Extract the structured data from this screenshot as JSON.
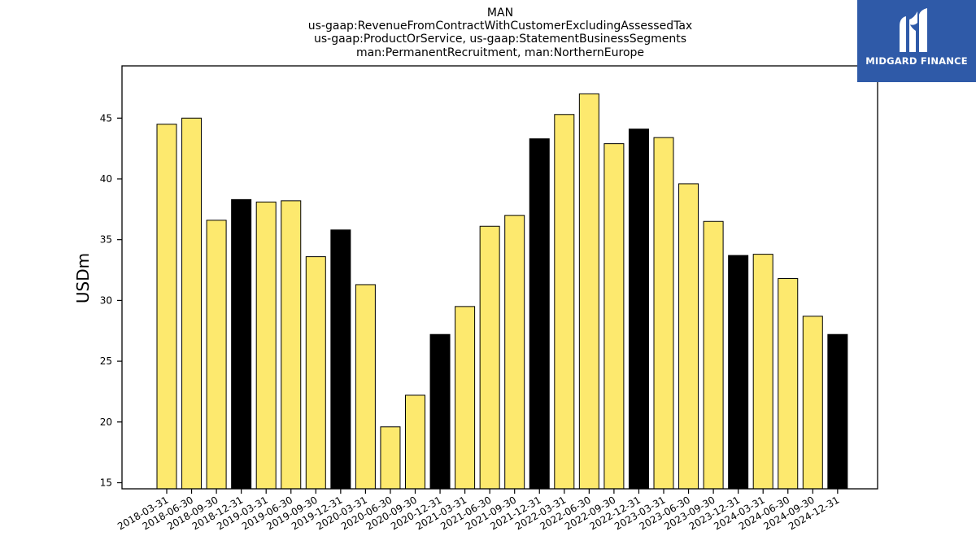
{
  "brand": {
    "name": "MIDGARD FINANCE",
    "logo_icon": "midgard-m-icon",
    "background_color": "#2f5aa8"
  },
  "colors": {
    "bar_default": "#fde96e",
    "bar_q4": "#000000",
    "bar_edge": "#000000"
  },
  "chart_data": {
    "type": "bar",
    "title_lines": [
      "MAN",
      "us-gaap:RevenueFromContractWithCustomerExcludingAssessedTax",
      "us-gaap:ProductOrService, us-gaap:StatementBusinessSegments",
      "man:PermanentRecruitment, man:NorthernEurope"
    ],
    "xlabel": "",
    "ylabel": "USDm",
    "ylim": [
      14.5,
      49.3
    ],
    "yticks": [
      15,
      20,
      25,
      30,
      35,
      40,
      45
    ],
    "grid": false,
    "legend": "none",
    "categories": [
      "2018-03-31",
      "2018-06-30",
      "2018-09-30",
      "2018-12-31",
      "2019-03-31",
      "2019-06-30",
      "2019-09-30",
      "2019-12-31",
      "2020-03-31",
      "2020-06-30",
      "2020-09-30",
      "2020-12-31",
      "2021-03-31",
      "2021-06-30",
      "2021-09-30",
      "2021-12-31",
      "2022-03-31",
      "2022-06-30",
      "2022-09-30",
      "2022-12-31",
      "2023-03-31",
      "2023-06-30",
      "2023-09-30",
      "2023-12-31",
      "2024-03-31",
      "2024-06-30",
      "2024-09-30",
      "2024-12-31"
    ],
    "values": [
      44.5,
      45.0,
      36.6,
      38.3,
      38.1,
      38.2,
      33.6,
      35.8,
      31.3,
      19.6,
      22.2,
      27.2,
      29.5,
      36.1,
      37.0,
      43.3,
      45.3,
      47.0,
      42.9,
      44.1,
      43.4,
      39.6,
      36.5,
      33.7,
      33.8,
      31.8,
      28.7,
      27.2
    ]
  }
}
